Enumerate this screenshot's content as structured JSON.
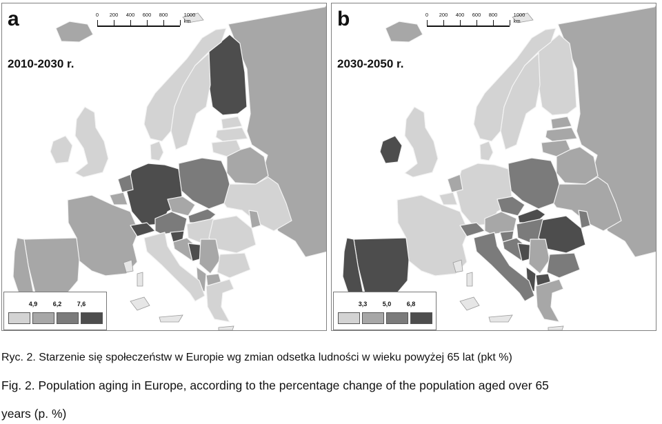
{
  "panels": [
    {
      "letter": "a",
      "period": "2010-2030 r.",
      "scale_ticks": [
        "0",
        "200",
        "400",
        "600",
        "800",
        "1000 km"
      ],
      "legend": {
        "values": [
          "4,9",
          "6,2",
          "7,6"
        ],
        "class_colors": [
          "#d3d3d3",
          "#a7a7a7",
          "#7b7b7b",
          "#4d4d4d"
        ]
      },
      "countries": {
        "iceland": 1,
        "ireland": 0,
        "uk": 0,
        "norway": 0,
        "sweden": 0,
        "finland": 3,
        "russia": 1,
        "estonia": 0,
        "latvia": 0,
        "lithuania": 0,
        "belarus": 1,
        "ukraine": 0,
        "moldova": 1,
        "poland": 2,
        "germany": 3,
        "denmark": 0,
        "netherlands": 2,
        "belgium": 1,
        "france": 1,
        "switzerland": 3,
        "austria": 2,
        "czechia": 1,
        "slovakia": 2,
        "hungary": 0,
        "slovenia": 3,
        "croatia": 1,
        "bosnia": 3,
        "serbia": 1,
        "romania": 0,
        "bulgaria": 0,
        "macedonia": 1,
        "albania": 1,
        "greece": 0,
        "italy": 0,
        "spain": 1,
        "portugal": 1
      }
    },
    {
      "letter": "b",
      "period": "2030-2050 r.",
      "scale_ticks": [
        "0",
        "200",
        "400",
        "600",
        "800",
        "1000 km"
      ],
      "legend": {
        "values": [
          "3,3",
          "5,0",
          "6,8"
        ],
        "class_colors": [
          "#d3d3d3",
          "#a7a7a7",
          "#7b7b7b",
          "#4d4d4d"
        ]
      },
      "countries": {
        "iceland": 1,
        "ireland": 3,
        "uk": 0,
        "norway": 0,
        "sweden": 0,
        "finland": 0,
        "russia": 1,
        "estonia": 1,
        "latvia": 1,
        "lithuania": 1,
        "belarus": 1,
        "ukraine": 1,
        "moldova": 2,
        "poland": 2,
        "germany": 0,
        "denmark": 0,
        "netherlands": 1,
        "belgium": 0,
        "france": 0,
        "switzerland": 2,
        "austria": 1,
        "czechia": 2,
        "slovakia": 3,
        "hungary": 2,
        "slovenia": 2,
        "croatia": 2,
        "bosnia": 3,
        "serbia": 1,
        "romania": 3,
        "bulgaria": 2,
        "macedonia": 3,
        "albania": 3,
        "greece": 1,
        "italy": 2,
        "spain": 3,
        "portugal": 3
      }
    }
  ],
  "captions": {
    "pl": "Ryc. 2. Starzenie się społeczeństw w Europie wg zmian odsetka ludności w wieku powyżej 65 lat (pkt %)",
    "en_line1": "Fig. 2. Population aging in Europe, according to the percentage change of the population aged over 65",
    "en_line2": "years (p. %)"
  }
}
